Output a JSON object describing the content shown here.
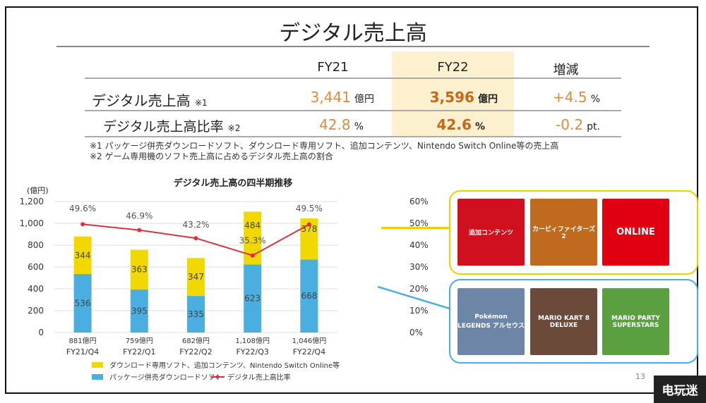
{
  "title": "デジタル売上高",
  "table": {
    "headers": [
      "FY21",
      "FY22",
      "増減"
    ],
    "rows": [
      {
        "label": "デジタル売上高",
        "note": "※1",
        "fy21": "3,441",
        "fy21_unit": "億円",
        "fy22": "3,596",
        "fy22_unit": "億円",
        "change": "+4.5",
        "change_unit": "%"
      },
      {
        "label": "デジタル売上高比率",
        "note": "※2",
        "fy21": "42.8",
        "fy21_unit": "%",
        "fy22": "42.6",
        "fy22_unit": "%",
        "change": "-0.2",
        "change_unit": "pt."
      }
    ],
    "highlight_color": "#fdf0cf"
  },
  "notes": [
    "※1 パッケージ併売ダウンロードソフト、ダウンロード専用ソフト、追加コンテンツ、Nintendo Switch Online等の売上高",
    "※2 ゲーム専用機のソフト売上高に占めるデジタル売上高の割合"
  ],
  "chart_data": {
    "type": "bar",
    "stacked": true,
    "title": "デジタル売上高の四半期推移",
    "ylabel": "(億円)",
    "ylim": [
      0,
      1200
    ],
    "yticks": [
      "0",
      "200",
      "400",
      "600",
      "800",
      "1,000",
      "1,200"
    ],
    "y2lim": [
      0,
      60
    ],
    "y2ticks": [
      "0%",
      "10%",
      "20%",
      "30%",
      "40%",
      "50%",
      "60%"
    ],
    "grid": true,
    "categories": [
      "FY21/Q4",
      "FY22/Q1",
      "FY22/Q2",
      "FY22/Q3",
      "FY22/Q4"
    ],
    "totals": [
      "881億円",
      "759億円",
      "682億円",
      "1,108億円",
      "1,046億円"
    ],
    "series": [
      {
        "name": "パッケージ併売ダウンロードソフト",
        "type": "bar",
        "color": "#4aaee0",
        "values": [
          536,
          395,
          335,
          623,
          668
        ]
      },
      {
        "name": "ダウンロード専用ソフト、追加コンテンツ、Nintendo Switch Online等",
        "type": "bar",
        "color": "#f0d800",
        "values": [
          344,
          363,
          347,
          484,
          378
        ]
      },
      {
        "name": "デジタル売上高比率",
        "type": "line",
        "axis": "right",
        "color": "#d9323c",
        "values": [
          49.6,
          46.9,
          43.2,
          35.3,
          49.5
        ],
        "labels": [
          "49.6%",
          "46.9%",
          "43.2%",
          "35.3%",
          "49.5%"
        ]
      }
    ],
    "legend": "bottom"
  },
  "images": {
    "digital_only": [
      {
        "label": "追加コンテンツ",
        "color": "#d0101e"
      },
      {
        "label": "カービィファイターズ2",
        "color": "#c06a20"
      },
      {
        "label": "ONLINE",
        "color": "#e00012"
      }
    ],
    "package": [
      {
        "label": "Pokémon LEGENDS アルセウス",
        "color": "#6d86a8"
      },
      {
        "label": "MARIO KART 8 DELUXE",
        "color": "#6b4a3a"
      },
      {
        "label": "MARIO PARTY SUPERSTARS",
        "color": "#5aa040"
      }
    ],
    "yellow_border": "#e8d200",
    "blue_border": "#4aaee0"
  },
  "page_number": "13",
  "watermark": "电玩迷"
}
